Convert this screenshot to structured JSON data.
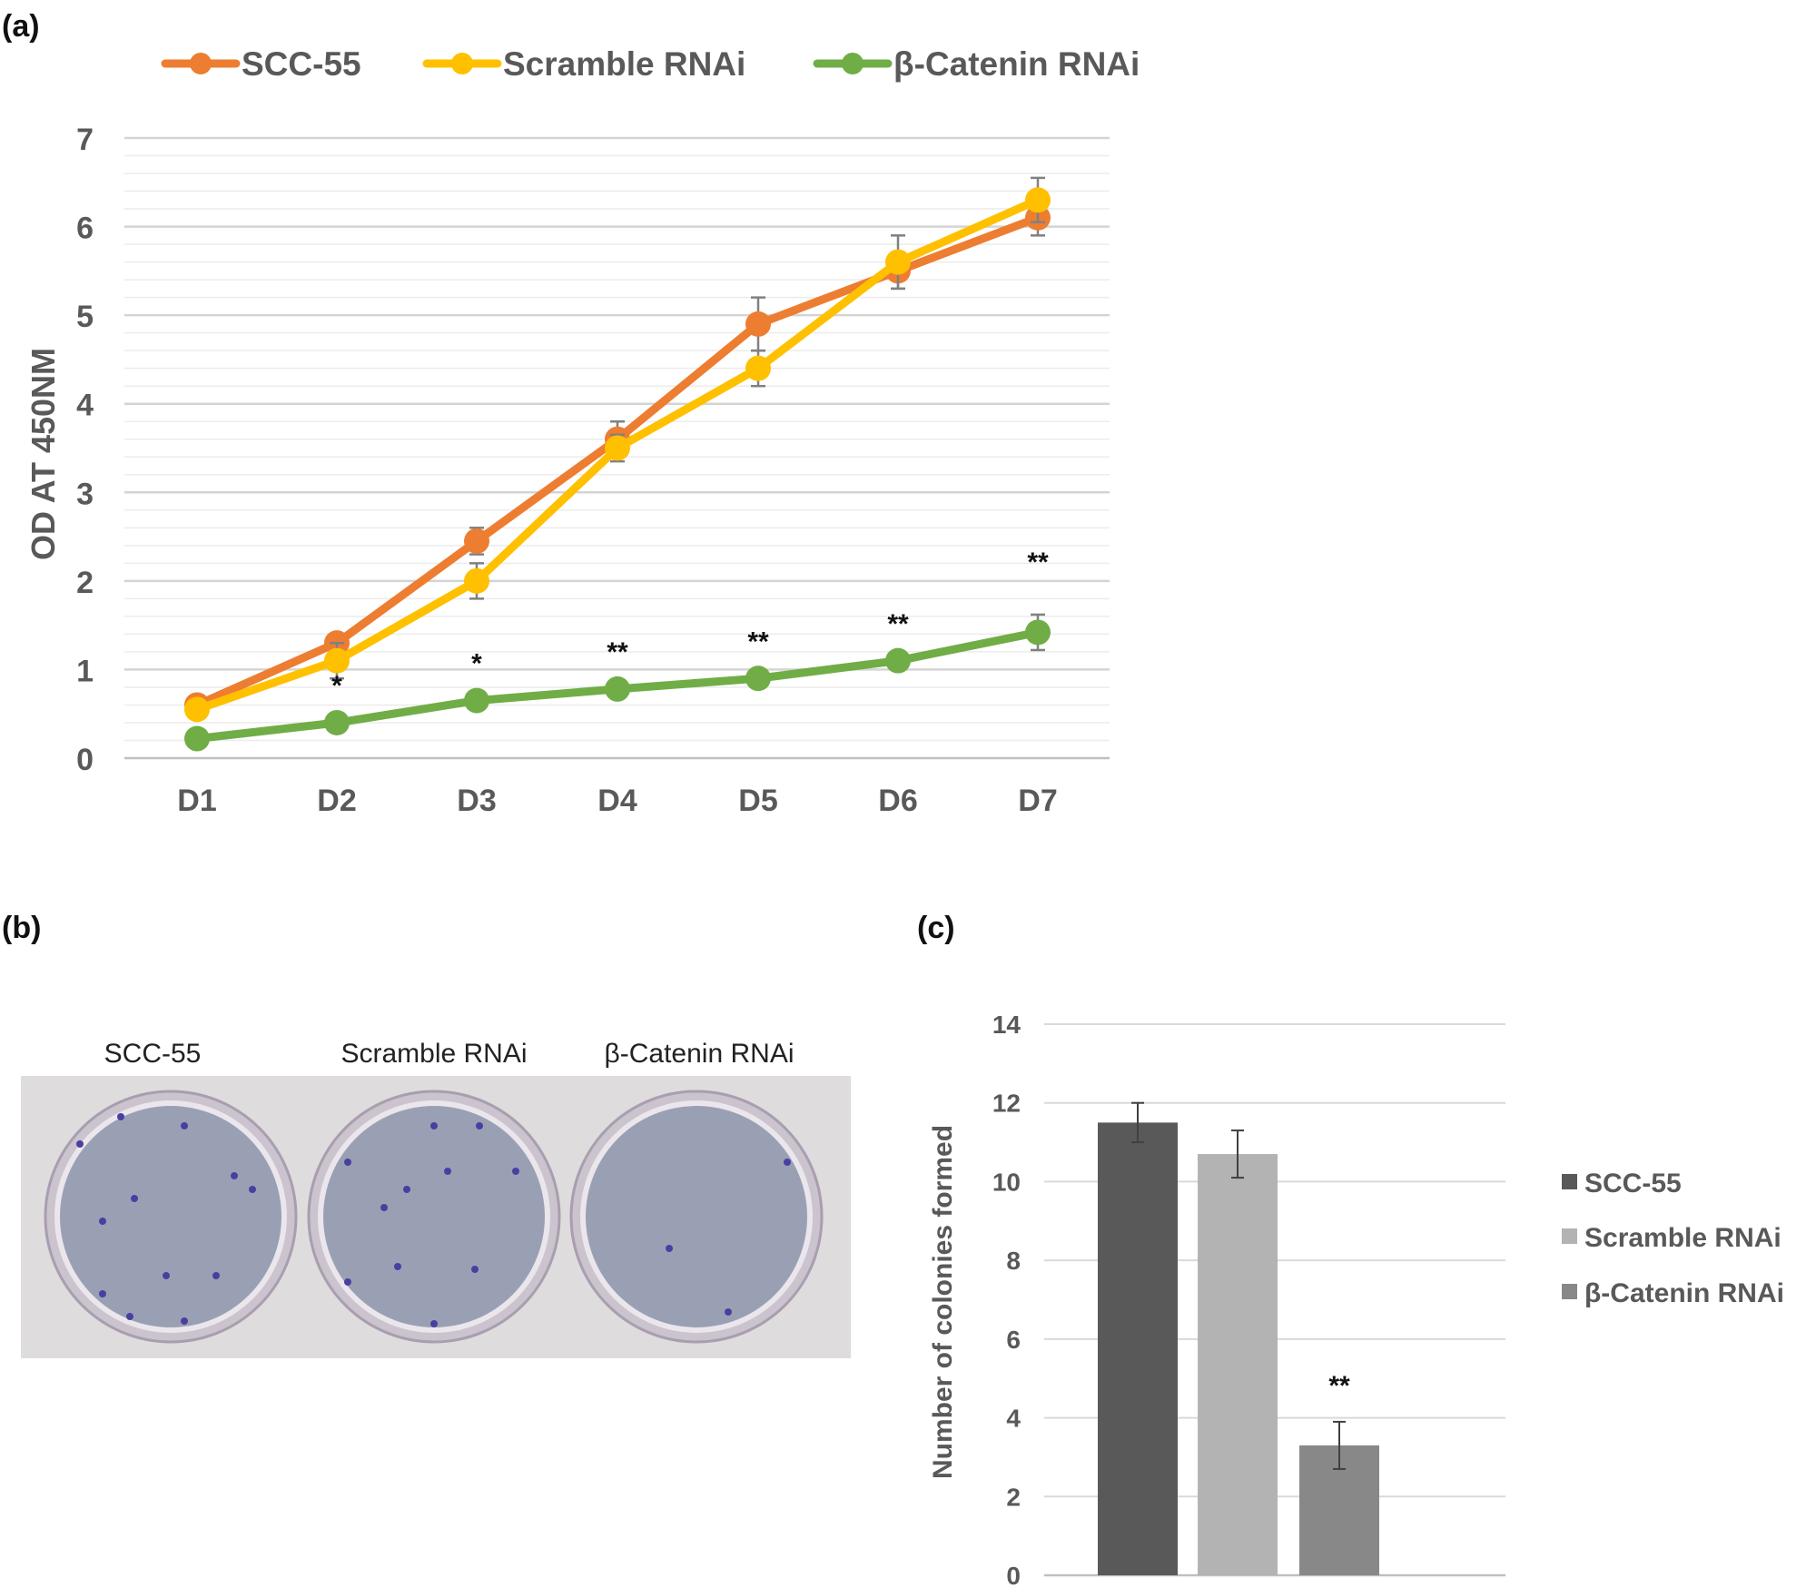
{
  "chart_data": [
    {
      "panel": "(a)",
      "type": "line",
      "categories": [
        "D1",
        "D2",
        "D3",
        "D4",
        "D5",
        "D6",
        "D7"
      ],
      "ylabel": "OD AT 450NM",
      "xlabel": "",
      "ylim": [
        0,
        7
      ],
      "yticks": [
        "0",
        "1",
        "2",
        "3",
        "4",
        "5",
        "6",
        "7"
      ],
      "grid": true,
      "legend_position": "top",
      "series": [
        {
          "name": "SCC-55",
          "color": "#ED7D31",
          "values": [
            0.6,
            1.3,
            2.45,
            3.6,
            4.9,
            5.5,
            6.1
          ],
          "errors": [
            0.05,
            0.1,
            0.15,
            0.2,
            0.3,
            0.2,
            0.2
          ]
        },
        {
          "name": "Scramble RNAi",
          "color": "#FFC000",
          "values": [
            0.55,
            1.1,
            2.0,
            3.5,
            4.4,
            5.6,
            6.3
          ],
          "errors": [
            0.05,
            0.2,
            0.2,
            0.15,
            0.2,
            0.3,
            0.25
          ]
        },
        {
          "name": "β-Catenin RNAi",
          "color": "#70AD47",
          "values": [
            0.22,
            0.4,
            0.65,
            0.78,
            0.9,
            1.1,
            1.42
          ],
          "errors": [
            0.03,
            0.05,
            0.05,
            0.05,
            0.05,
            0.05,
            0.2
          ]
        }
      ],
      "significance": [
        "",
        "*",
        "*",
        "**",
        "**",
        "**",
        "**"
      ]
    },
    {
      "panel": "(b)",
      "type": "image",
      "plate_labels": [
        "SCC-55",
        "Scramble RNAi",
        "β-Catenin RNAi"
      ],
      "colony_counts": [
        12,
        11,
        3
      ]
    },
    {
      "panel": "(c)",
      "type": "bar",
      "ylabel": "Number of colonies formed",
      "ylim": [
        0,
        14
      ],
      "yticks": [
        "0",
        "2",
        "4",
        "6",
        "8",
        "10",
        "12",
        "14"
      ],
      "grid": true,
      "legend_position": "right",
      "categories": [
        "SCC-55",
        "Scramble RNAi",
        "β-Catenin RNAi"
      ],
      "values": [
        11.5,
        10.7,
        3.3
      ],
      "errors": [
        0.5,
        0.6,
        0.6
      ],
      "colors": [
        "#595959",
        "#B3B3B3",
        "#888888"
      ],
      "significance": [
        "",
        "",
        "**"
      ]
    }
  ]
}
